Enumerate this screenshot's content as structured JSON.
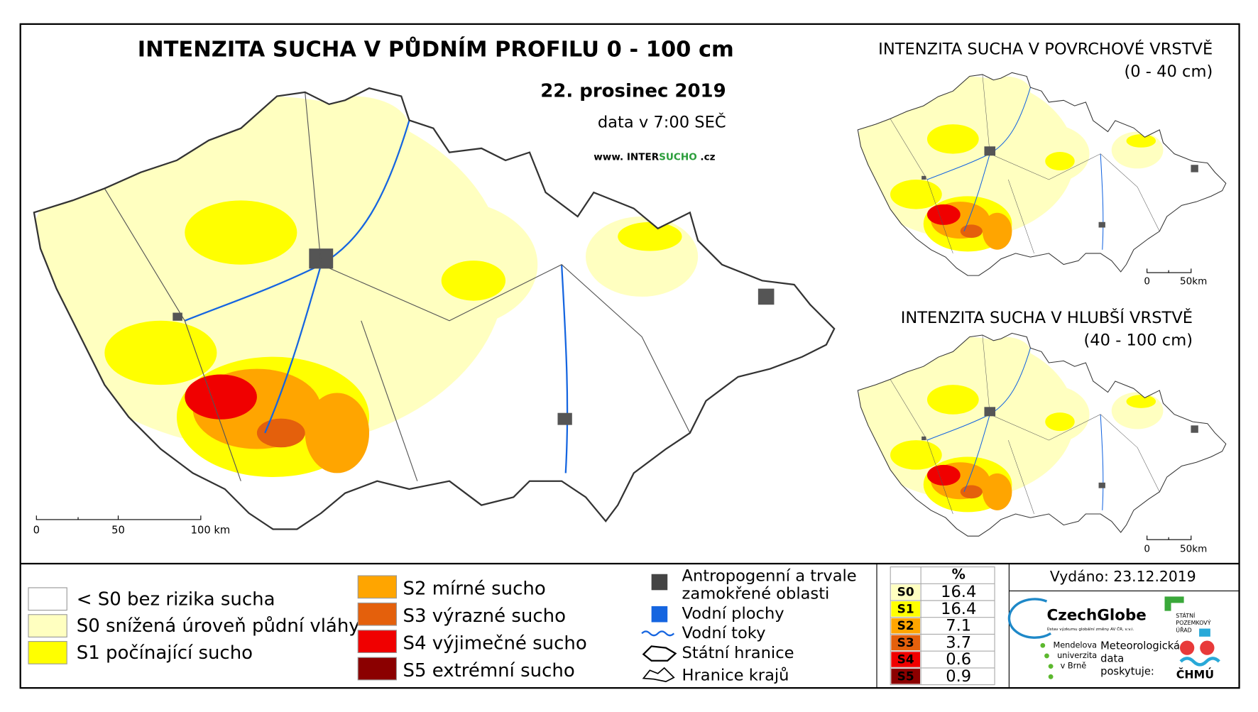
{
  "header": {
    "title": "INTENZITA SUCHA V PŮDNÍM PROFILU 0 - 100 cm",
    "date": "22. prosinec 2019",
    "data_time": "data v 7:00 SEČ",
    "website": {
      "prefix": "www.",
      "inter": "INTER",
      "sucho": "SUCHO",
      "suffix": ".cz"
    }
  },
  "main_map": {
    "scale_labels": [
      "0",
      "50",
      "100 km"
    ]
  },
  "insets": [
    {
      "title": "INTENZITA SUCHA V POVRCHOVÉ VRSTVĚ",
      "subtitle": "(0 - 40 cm)",
      "scale_labels": [
        "0",
        "50km"
      ]
    },
    {
      "title": "INTENZITA SUCHA V HLUBŠÍ VRSTVĚ",
      "subtitle": "(40 - 100 cm)",
      "scale_labels": [
        "0",
        "50km"
      ]
    }
  ],
  "legend": {
    "drought_classes": [
      {
        "label": "< S0 bez rizika sucha",
        "color": "#ffffff"
      },
      {
        "label": "S0 snížená úroveň půdní vláhy",
        "color": "#ffffc0"
      },
      {
        "label": "S1 počínající sucho",
        "color": "#ffff00"
      },
      {
        "label": "S2 mírné sucho",
        "color": "#ffa500"
      },
      {
        "label": "S3 výrazné sucho",
        "color": "#e4600c"
      },
      {
        "label": "S4 výjimečné sucho",
        "color": "#f00000"
      },
      {
        "label": "S5 extrémní sucho",
        "color": "#8b0000"
      }
    ],
    "other": {
      "anthropogenic": [
        "Antropogenní a trvale",
        "zamokřené oblasti"
      ],
      "water_bodies": "Vodní plochy",
      "rivers": "Vodní toky",
      "state_border": "Státní hranice",
      "regions": "Hranice krajů"
    }
  },
  "stats_table": {
    "header": "%",
    "rows": [
      {
        "class": "S0",
        "value": 16.4,
        "color": "#ffffc0"
      },
      {
        "class": "S1",
        "value": 16.4,
        "color": "#ffff00"
      },
      {
        "class": "S2",
        "value": 7.1,
        "color": "#ffa500"
      },
      {
        "class": "S3",
        "value": 3.7,
        "color": "#e4600c"
      },
      {
        "class": "S4",
        "value": 0.6,
        "color": "#f00000"
      },
      {
        "class": "S5",
        "value": 0.9,
        "color": "#8b0000"
      }
    ]
  },
  "issued": "Vydáno: 23.12.2019",
  "logos": {
    "czechglobe": "CzechGlobe",
    "czechglobe_sub": "Ústav výzkumu globální změny AV ČR, v.v.i.",
    "spu": [
      "STÁTNÍ",
      "POZEMKOVÝ",
      "ÚŘAD"
    ],
    "mendelu": [
      "Mendelova",
      "univerzita",
      "v Brně"
    ],
    "meteo": [
      "Meteorologická",
      "data",
      "poskytuje:"
    ],
    "chmu": "ČHMÚ"
  }
}
